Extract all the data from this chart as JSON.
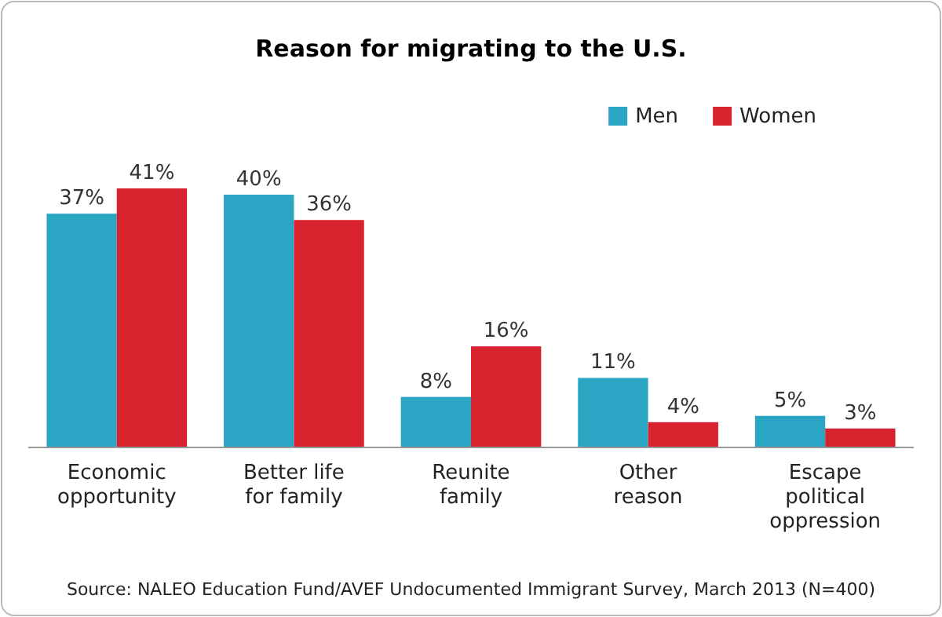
{
  "chart_data": {
    "type": "bar",
    "title": "Reason for migrating to the U.S.",
    "categories": [
      "Economic opportunity",
      "Better life for family",
      "Reunite family",
      "Other reason",
      "Escape political oppression"
    ],
    "series": [
      {
        "name": "Men",
        "color": "#2aa5c4",
        "values": [
          37,
          40,
          8,
          11,
          5
        ],
        "value_labels": [
          "37%",
          "40%",
          "8%",
          "11%",
          "5%"
        ]
      },
      {
        "name": "Women",
        "color": "#d8232f",
        "values": [
          41,
          36,
          16,
          4,
          3
        ],
        "value_labels": [
          "41%",
          "36%",
          "16%",
          "4%",
          "3%"
        ]
      }
    ],
    "legend": "top right",
    "annotations": [
      "Source: NALEO Education Fund/AVEF Undocumented Immigrant Survey, March 2013  (N=400)"
    ]
  }
}
